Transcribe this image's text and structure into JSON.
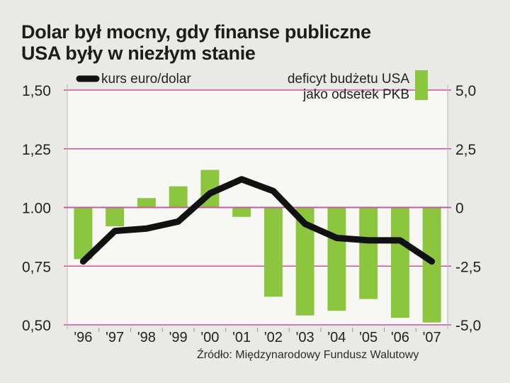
{
  "title_lines": [
    "Dolar był mocny, gdy finanse publiczne",
    "USA były w niezłym stanie"
  ],
  "source": "Źródło: Międzynarodowy Fundusz Walutowy",
  "colors": {
    "bar": "#8cc63f",
    "line": "#111111",
    "grid": "#c9519e",
    "plot_bg": "#f7f7f4"
  },
  "chart_data": {
    "type": "bar+line",
    "categories": [
      "'96",
      "'97",
      "'98",
      "'99",
      "'00",
      "'01",
      "'02",
      "'03",
      "'04",
      "'05",
      "'06",
      "'07"
    ],
    "series": [
      {
        "name": "deficyt budżetu USA jako odsetek PKB",
        "name_lines": [
          "deficyt budżetu USA",
          "jako odsetek PKB"
        ],
        "type": "bar",
        "axis": "right",
        "values": [
          -2.2,
          -0.8,
          0.4,
          0.9,
          1.6,
          -0.4,
          -3.8,
          -4.6,
          -4.4,
          -3.9,
          -4.7,
          -4.9
        ]
      },
      {
        "name": "kurs euro/dolar",
        "type": "line",
        "axis": "left",
        "values": [
          0.77,
          0.9,
          0.91,
          0.94,
          1.06,
          1.12,
          1.07,
          0.93,
          0.87,
          0.86,
          0.86,
          0.77
        ]
      }
    ],
    "y_left": {
      "min": 0.5,
      "max": 1.5,
      "ticks": [
        "1,50",
        "1,25",
        "1.00",
        "0,75",
        "0,50"
      ],
      "tick_values": [
        1.5,
        1.25,
        1.0,
        0.75,
        0.5
      ]
    },
    "y_right": {
      "min": -5,
      "max": 5,
      "ticks": [
        "5,0",
        "2,5",
        "0",
        "-2,5",
        "-5,0"
      ],
      "tick_values": [
        5,
        2.5,
        0,
        -2.5,
        -5
      ]
    },
    "legend_placement": "top",
    "grid": true
  }
}
